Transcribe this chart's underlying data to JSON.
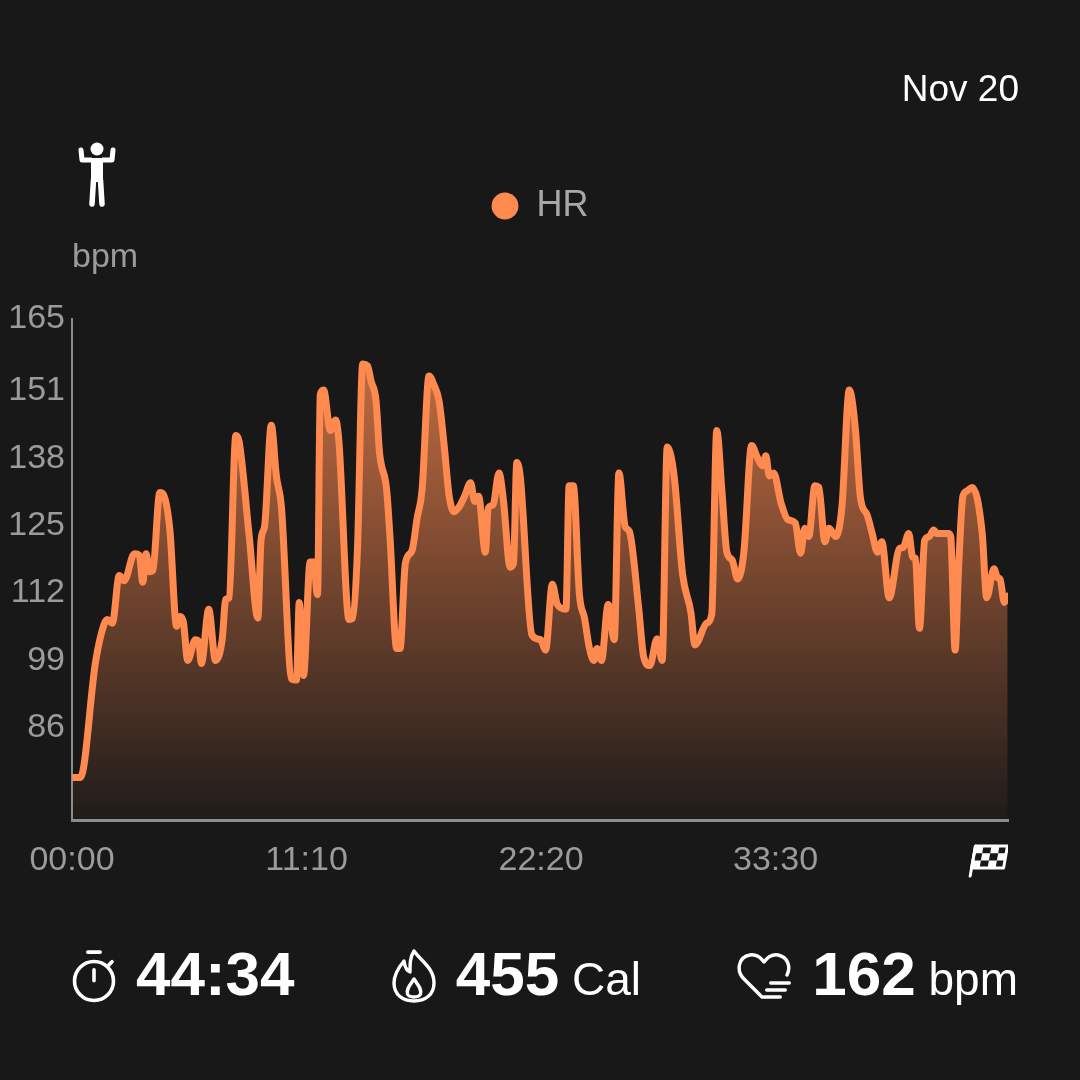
{
  "chart_data": {
    "type": "area",
    "subtitle": "Nov 20",
    "ylabel": "bpm",
    "annotations": [
      "44:34",
      "455 Cal",
      "162 bpm"
    ],
    "legend": "top",
    "grid": false,
    "marker": "none",
    "x": [
      0,
      0.4,
      1.12,
      1.52,
      1.68,
      1.92,
      2.25,
      2.49,
      2.97,
      3.21,
      3.37,
      3.53,
      3.69,
      3.85,
      4.18,
      4.34,
      4.66,
      4.98,
      5.14,
      5.3,
      5.51,
      5.87,
      6.03,
      6.16,
      6.51,
      6.83,
      7.15,
      7.32,
      7.48,
      7.8,
      7.96,
      8.44,
      8.85,
      9,
      9.17,
      9.49,
      9.73,
      9.97,
      10.46,
      10.69,
      10.82,
      11.02,
      11.34,
      11.5,
      11.69,
      11.82,
      11.98,
      12.3,
      12.55,
      12.71,
      13.19,
      13.35,
      13.59,
      13.84,
      14.07,
      14.24,
      14.48,
      14.64,
      14.98,
      15.14,
      15.46,
      15.62,
      15.87,
      16.19,
      16.43,
      16.67,
      17,
      17.23,
      17.48,
      17.72,
      17.96,
      18.2,
      18.44,
      18.69,
      18.98,
      19.17,
      19.36,
      19.68,
      19.82,
      20.05,
      20.33,
      20.54,
      20.86,
      21.02,
      21.18,
      21.34,
      21.9,
      22.31,
      22.55,
      22.87,
      23.11,
      23.52,
      23.67,
      23.87,
      24.16,
      24.4,
      24.64,
      24.84,
      25,
      25.21,
      25.53,
      25.82,
      26.04,
      26.34,
      26.54,
      26.98,
      27.22,
      27.51,
      27.86,
      28.1,
      28.34,
      28.67,
      29.07,
      29.47,
      29.66,
      30.22,
      30.46,
      30.7,
      30.94,
      31.18,
      31.43,
      31.7,
      31.99,
      32.36,
      32.63,
      32.87,
      33.04,
      33.2,
      33.41,
      33.76,
      34.08,
      34.44,
      34.69,
      34.89,
      35.08,
      35.37,
      35.56,
      35.85,
      36.04,
      36.37,
      36.66,
      37.01,
      37.3,
      37.54,
      37.86,
      38.1,
      38.35,
      38.56,
      38.91,
      39.4,
      39.58,
      39.84,
      40.03,
      40.16,
      40.35,
      40.6,
      40.81,
      41.03,
      41.17,
      41.73,
      41.84,
      42.05,
      42.21,
      42.42,
      42.61,
      42.86,
      43.34,
      43.55,
      43.9,
      44.06,
      44.19,
      44.39,
      44.55
    ],
    "series": [
      {
        "name": "HR",
        "color": "#ff8a50",
        "values": [
          76.4,
          76.4,
          98.7,
          105.9,
          106.9,
          106.2,
          115.4,
          114.4,
          119.6,
          119.3,
          114.1,
          119.6,
          116.1,
          116.4,
          131.4,
          131.1,
          124.2,
          105.6,
          107.5,
          106.5,
          99,
          103,
          102.7,
          98.4,
          108.9,
          99,
          103,
          110.8,
          111.1,
          142.4,
          141.2,
          122.9,
          107.2,
          122.2,
          124.9,
          144.4,
          134.6,
          128.7,
          95.4,
          95.2,
          110.2,
          96.1,
          118,
          118,
          111.7,
          150.3,
          151.2,
          143.4,
          145.4,
          141.2,
          106.9,
          107.1,
          120.2,
          156.2,
          155.9,
          152.9,
          149,
          139.2,
          132,
          122.9,
          101.3,
          101.3,
          117.7,
          120.2,
          126.4,
          132,
          153.9,
          152.2,
          149,
          140.5,
          130.7,
          127.7,
          128.7,
          130.7,
          133.3,
          129.7,
          130.7,
          119.9,
          128.4,
          129,
          135.2,
          130,
          117,
          117.7,
          137.2,
          134.6,
          103.9,
          103,
          101,
          113.7,
          109.8,
          108.9,
          132.7,
          132.7,
          111.7,
          107.2,
          101.3,
          99,
          101.3,
          99,
          109.8,
          103,
          135.2,
          124.8,
          123.9,
          109.2,
          99.7,
          98,
          103.2,
          99,
          140.2,
          134.6,
          115.7,
          108.2,
          102,
          106.2,
          107.9,
          143.4,
          132,
          119.9,
          118.4,
          114.7,
          119.9,
          140.5,
          138.2,
          136.6,
          138.5,
          134.6,
          135.2,
          129.4,
          126.2,
          125.5,
          119.7,
          124.5,
          122.9,
          132.7,
          132.4,
          121.9,
          124.5,
          122.9,
          128.7,
          151.2,
          143.7,
          130.4,
          127.1,
          123.5,
          119.9,
          121.9,
          111.1,
          120.6,
          120.8,
          123.5,
          118.9,
          118.7,
          105.2,
          122.2,
          122.9,
          124.2,
          123.5,
          123.5,
          122.9,
          101,
          116.4,
          130.7,
          131.7,
          132.4,
          123.5,
          111.1,
          116.7,
          115,
          114.7,
          110.2,
          111.4
        ]
      }
    ],
    "xlim": [
      0,
      44.5667
    ],
    "xticks": [
      {
        "value": 0,
        "label": "00:00"
      },
      {
        "value": 11.1667,
        "label": "11:10"
      },
      {
        "value": 22.3333,
        "label": "22:20"
      },
      {
        "value": 33.5,
        "label": "33:30"
      }
    ],
    "ylim": [
      68.2,
      165
    ],
    "yticks": [
      86,
      99,
      112,
      125,
      138,
      151,
      165
    ]
  }
}
